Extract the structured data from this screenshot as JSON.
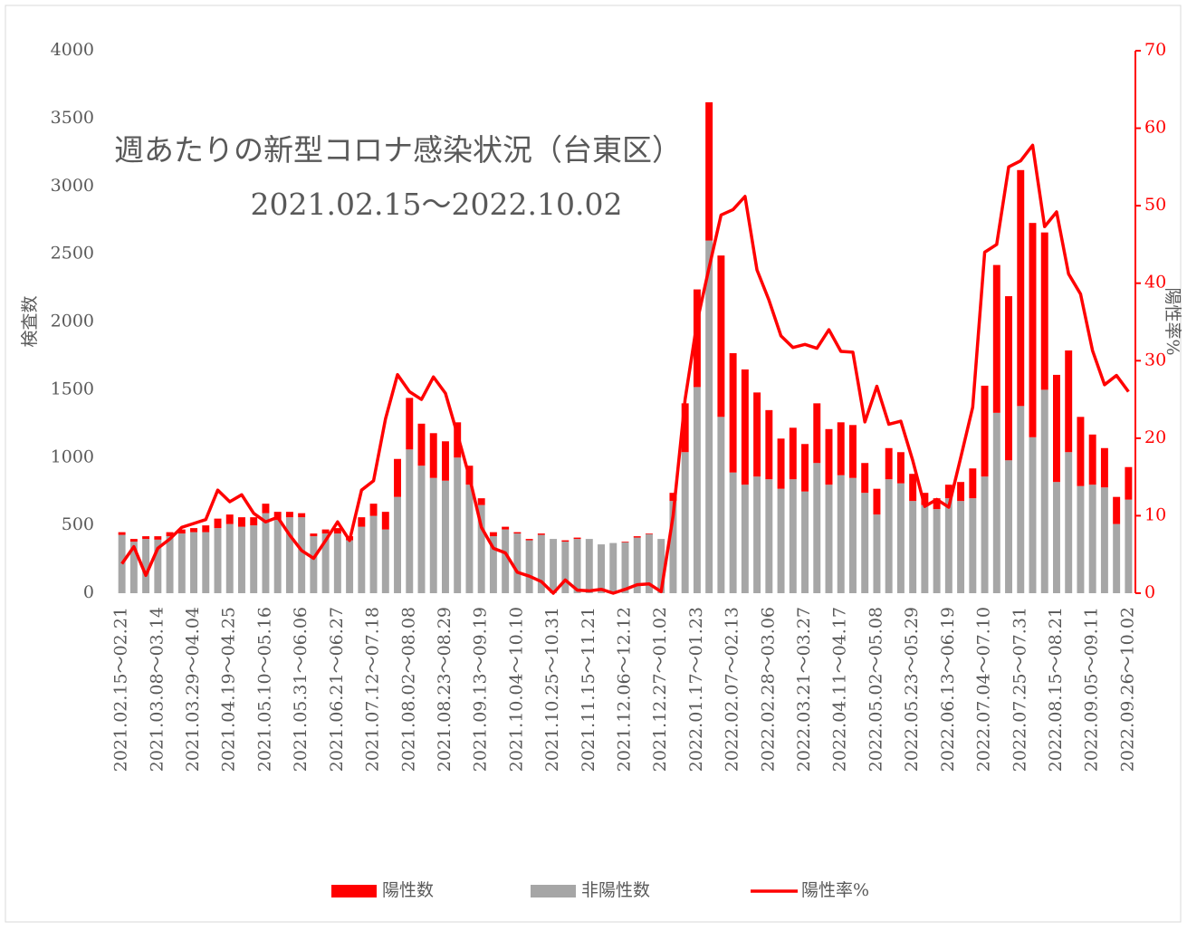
{
  "chart_data": {
    "type": "bar",
    "title": "週あたりの新型コロナ感染状況（台東区）",
    "subtitle": "2021.02.15～2022.10.02",
    "y_label": "検査数",
    "y2_label": "陽性率%",
    "categories": [
      "2021.02.15～02.21",
      null,
      null,
      "2021.03.08～03.14",
      null,
      null,
      "2021.03.29～04.04",
      null,
      null,
      "2021.04.19～04.25",
      null,
      null,
      "2021.05.10～05.16",
      null,
      null,
      "2021.05.31～06.06",
      null,
      null,
      "2021.06.21～06.27",
      null,
      null,
      "2021.07.12～07.18",
      null,
      null,
      "2021.08.02～08.08",
      null,
      null,
      "2021.08.23～08.29",
      null,
      null,
      "2021.09.13～09.19",
      null,
      null,
      "2021.10.04～10.10",
      null,
      null,
      "2021.10.25～10.31",
      null,
      null,
      "2021.11.15～11.21",
      null,
      null,
      "2021.12.06～12.12",
      null,
      null,
      "2021.12.27～01.02",
      null,
      null,
      "2022.01.17～01.23",
      null,
      null,
      "2022.02.07～02.13",
      null,
      null,
      "2022.02.28～03.06",
      null,
      null,
      "2022.03.21～03.27",
      null,
      null,
      "2022.04.11～04.17",
      null,
      null,
      "2022.05.02～05.08",
      null,
      null,
      "2022.05.23～05.29",
      null,
      null,
      "2022.06.13～06.19",
      null,
      null,
      "2022.07.04～07.10",
      null,
      null,
      "2022.07.25～07.31",
      null,
      null,
      "2022.08.15～08.21",
      null,
      null,
      "2022.09.05～09.11",
      null,
      null,
      "2022.09.26～10.02"
    ],
    "series": [
      {
        "name": "陽性数",
        "color": "#ff0000",
        "kind": "bar",
        "values": [
          20,
          20,
          20,
          25,
          30,
          30,
          30,
          50,
          70,
          70,
          70,
          60,
          70,
          60,
          40,
          30,
          20,
          30,
          40,
          30,
          70,
          90,
          130,
          280,
          380,
          310,
          330,
          290,
          260,
          140,
          50,
          30,
          20,
          10,
          10,
          10,
          0,
          10,
          10,
          0,
          0,
          0,
          5,
          10,
          5,
          0,
          60,
          360,
          720,
          1020,
          1190,
          880,
          850,
          620,
          510,
          370,
          380,
          350,
          440,
          410,
          390,
          390,
          220,
          190,
          230,
          230,
          200,
          90,
          80,
          100,
          140,
          220,
          670,
          1090,
          1210,
          1740,
          1580,
          1160,
          790,
          750,
          510,
          370,
          290,
          200,
          240
        ]
      },
      {
        "name": "非陽性数",
        "color": "#a6a6a6",
        "kind": "bar",
        "values": [
          430,
          380,
          400,
          395,
          420,
          440,
          450,
          450,
          480,
          510,
          490,
          500,
          590,
          540,
          560,
          560,
          420,
          440,
          440,
          390,
          490,
          570,
          470,
          710,
          1060,
          940,
          850,
          830,
          1000,
          800,
          650,
          420,
          470,
          440,
          390,
          430,
          400,
          380,
          400,
          400,
          360,
          370,
          375,
          410,
          435,
          400,
          680,
          1040,
          1520,
          2600,
          1300,
          890,
          800,
          860,
          840,
          770,
          840,
          750,
          960,
          800,
          870,
          850,
          740,
          580,
          840,
          810,
          680,
          650,
          620,
          700,
          680,
          700,
          860,
          1330,
          980,
          1380,
          1150,
          1500,
          820,
          1040,
          790,
          800,
          780,
          510,
          690
        ]
      },
      {
        "name": "陽性率%",
        "color": "#ff0000",
        "kind": "line",
        "axis": "y2",
        "values": [
          3.8,
          6,
          2.3,
          5.8,
          7,
          8.5,
          9,
          9.5,
          13.3,
          11.8,
          12.7,
          10.3,
          9.2,
          9.8,
          7.5,
          5.5,
          4.5,
          6.8,
          9.2,
          6.8,
          13.3,
          14.5,
          22.5,
          28.2,
          26,
          25,
          27.9,
          25.8,
          20.5,
          15,
          8.5,
          5.8,
          5.2,
          2.7,
          2.2,
          1.5,
          0,
          1.7,
          0.4,
          0.3,
          0.5,
          0,
          0.5,
          1.1,
          1.2,
          0.2,
          10,
          25,
          35,
          42,
          48.8,
          49.5,
          51.2,
          41.7,
          37.8,
          33.2,
          31.7,
          32.1,
          31.6,
          34,
          31.2,
          31.1,
          22.1,
          26.7,
          21.8,
          22.2,
          17.1,
          11.2,
          12.1,
          11.1,
          17.5,
          24,
          44,
          45,
          55,
          55.8,
          57.8,
          47.3,
          49.2,
          41.2,
          38.6,
          31.3,
          26.9,
          28.1,
          26
        ]
      }
    ],
    "ylim": [
      0,
      4000
    ],
    "yticks": [
      0,
      500,
      1000,
      1500,
      2000,
      2500,
      3000,
      3500,
      4000
    ],
    "y2lim": [
      0,
      70
    ],
    "y2ticks": [
      0,
      10,
      20,
      30,
      40,
      50,
      60,
      70
    ],
    "y2_color": "#ff0000",
    "stacked": true,
    "grid": false,
    "legend": "bottom"
  }
}
